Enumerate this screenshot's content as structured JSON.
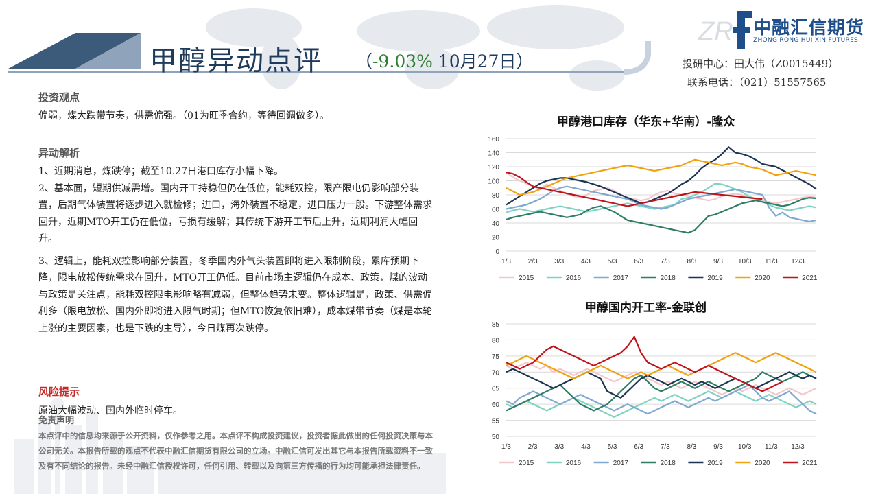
{
  "header": {
    "title": "甲醇异动点评",
    "subtitle_open": "（",
    "subtitle_pct": "-9.03%",
    "subtitle_date": " 10月27日）"
  },
  "logo": {
    "mark": "ZR",
    "name_cn": "中融汇信期货",
    "name_en": "ZHONG RONG HUI XIN FUTURES"
  },
  "contact": {
    "analyst": "投研中心：田大伟（Z0015449）",
    "phone": "联系电话：（021）51557565"
  },
  "view": {
    "heading": "投资观点",
    "text": "偏弱，煤大跌带节奏，供需偏强。（01为旺季合约，等待回调做多）。"
  },
  "analysis": {
    "heading": "异动解析",
    "p1": "1、近期消息，煤跌停；截至10.27日港口库存小幅下降。",
    "p2": "2、基本面，短期供减需增。国内开工持稳但仍在低位，能耗双控，限产限电仍影响部分装置，后期气体装置将逐步进入就检修；进口，海外装置不稳定，进口压力一般。下游整体需求回升，近期MTO开工仍在低位，亏损有缓解；其传统下游开工节后上升，近期利润大幅回升。",
    "p3": "3、逻辑上，能耗双控影响部分装置，冬季国内外气头装置即将进入限制阶段，累库预期下降，限电放松传统需求在回升，MTO开工仍低。目前市场主逻辑仍在成本、政策，煤的波动与政策是关注点，能耗双控限电影响略有减弱，但整体趋势未变。整体逻辑是，政策、供需偏利多（限电放松、国内外即将进入限气时期；但MTO恢复依旧难），成本煤带节奏（煤是本轮上涨的主要因素，也是下跌的主导），今日煤再次跌停。"
  },
  "risk": {
    "heading": "风险提示",
    "text": "原油大幅波动、国内外临时停车。"
  },
  "disclaimer": {
    "heading": "免责声明",
    "text": "本点评中的信息均来源于公开资料，仅作参考之用。本点评不构成投资建议，投资者据此做出的任何投资决策与本公司无关。本报告所载的观点不代表中融汇信期货有限公司的立场。中融汇信可发出其它与本报告所载资料不一致及有不同结论的报告。未经中融汇信授权许可，任何引用、转载以及向第三方传播的行为均可能承担法律责任。"
  },
  "colors": {
    "title": "#1f3b5c",
    "accent_green": "#2e7d32",
    "risk_red": "#c62828",
    "logo_blue": "#1f4f8b"
  },
  "chart_data": [
    {
      "type": "line",
      "title": "甲醇港口库存（华东+华南）-隆众",
      "x_ticks": [
        "1/3",
        "2/3",
        "3/3",
        "4/3",
        "5/3",
        "6/3",
        "7/3",
        "8/3",
        "9/3",
        "10/3",
        "11/3",
        "12/3"
      ],
      "ylim": [
        0,
        160
      ],
      "y_ticks": [
        0,
        20,
        40,
        60,
        80,
        100,
        120,
        140,
        160
      ],
      "grid": true,
      "legend": "bottom",
      "series": [
        {
          "name": "2015",
          "color": "#f4c7cc",
          "values": [
            112,
            105,
            100,
            96,
            92,
            88,
            95,
            90,
            86,
            82,
            78,
            76,
            80,
            86,
            88,
            90,
            86,
            80,
            76,
            74,
            72,
            74,
            80,
            84,
            86,
            82,
            80,
            78,
            76,
            74,
            72,
            74,
            78,
            80,
            82,
            80,
            76,
            74,
            72,
            70,
            68,
            70,
            72,
            74,
            76,
            78,
            76
          ]
        },
        {
          "name": "2016",
          "color": "#7fd3c3",
          "values": [
            55,
            58,
            60,
            58,
            56,
            58,
            60,
            62,
            64,
            62,
            60,
            58,
            56,
            58,
            60,
            62,
            64,
            66,
            68,
            66,
            64,
            62,
            60,
            62,
            64,
            66,
            74,
            76,
            80,
            84,
            90,
            96,
            95,
            92,
            88,
            84,
            78,
            74,
            70,
            66,
            62,
            60,
            58,
            60,
            62,
            64,
            62
          ]
        },
        {
          "name": "2017",
          "color": "#7fa9d1",
          "values": [
            60,
            62,
            64,
            66,
            70,
            74,
            80,
            86,
            90,
            92,
            90,
            88,
            86,
            84,
            82,
            80,
            78,
            76,
            74,
            70,
            66,
            64,
            62,
            60,
            62,
            66,
            70,
            74,
            76,
            78,
            80,
            82,
            84,
            86,
            88,
            86,
            84,
            82,
            80,
            62,
            50,
            55,
            48,
            46,
            44,
            42,
            44
          ]
        },
        {
          "name": "2018",
          "color": "#2e7d64",
          "values": [
            45,
            48,
            50,
            52,
            54,
            56,
            54,
            52,
            50,
            48,
            50,
            52,
            58,
            62,
            64,
            60,
            56,
            50,
            44,
            42,
            40,
            38,
            36,
            34,
            32,
            30,
            28,
            26,
            30,
            40,
            50,
            52,
            56,
            60,
            64,
            68,
            70,
            72,
            70,
            68,
            66,
            64,
            66,
            70,
            74,
            76,
            75
          ]
        },
        {
          "name": "2019",
          "color": "#1c3553",
          "values": [
            66,
            72,
            78,
            84,
            90,
            96,
            100,
            102,
            104,
            104,
            102,
            100,
            98,
            95,
            92,
            88,
            84,
            80,
            76,
            72,
            68,
            70,
            74,
            78,
            82,
            88,
            95,
            100,
            108,
            118,
            125,
            130,
            138,
            148,
            140,
            138,
            135,
            130,
            124,
            122,
            120,
            115,
            110,
            105,
            100,
            95,
            88
          ]
        },
        {
          "name": "2020",
          "color": "#f2a20c",
          "values": [
            90,
            85,
            80,
            82,
            84,
            88,
            92,
            96,
            100,
            104,
            106,
            108,
            110,
            112,
            114,
            116,
            118,
            120,
            122,
            120,
            118,
            116,
            114,
            116,
            118,
            120,
            122,
            126,
            130,
            128,
            126,
            124,
            122,
            124,
            126,
            124,
            120,
            118,
            116,
            112,
            108,
            110,
            112,
            114,
            112,
            110,
            108
          ]
        },
        {
          "name": "2021",
          "color": "#c0141c",
          "values": [
            112,
            110,
            105,
            98,
            92,
            90,
            88,
            86,
            84,
            82,
            80,
            78,
            76,
            74,
            72,
            70,
            68,
            66,
            64,
            66,
            68,
            70,
            72,
            74,
            76,
            78,
            80,
            82,
            84,
            83,
            82,
            81,
            80,
            79,
            78,
            77,
            76,
            75,
            74
          ]
        }
      ]
    },
    {
      "type": "line",
      "title": "甲醇国内开工率-金联创",
      "x_ticks": [
        "1/3",
        "2/3",
        "3/3",
        "4/3",
        "5/3",
        "6/3",
        "7/3",
        "8/3",
        "9/3",
        "10/3",
        "11/3",
        "12/3"
      ],
      "ylim": [
        50,
        85
      ],
      "y_ticks": [
        50,
        55,
        60,
        65,
        70,
        75,
        80,
        85
      ],
      "grid": true,
      "legend": "bottom",
      "series": [
        {
          "name": "2015",
          "color": "#f4c7cc",
          "values": [
            72,
            71,
            72,
            73,
            72,
            71,
            72,
            70,
            71,
            70,
            69,
            70,
            71,
            70,
            69,
            68,
            67,
            68,
            69,
            70,
            69,
            68,
            67,
            66,
            67,
            66,
            65,
            66,
            67,
            66,
            65,
            64,
            63,
            64,
            65,
            64,
            65,
            66,
            65,
            64,
            63,
            64,
            65,
            64,
            63,
            64,
            65
          ]
        },
        {
          "name": "2016",
          "color": "#7fd3c3",
          "values": [
            60,
            59,
            60,
            61,
            60,
            59,
            58,
            59,
            60,
            61,
            62,
            61,
            60,
            59,
            58,
            57,
            56,
            57,
            58,
            59,
            60,
            61,
            62,
            61,
            62,
            63,
            62,
            61,
            62,
            63,
            64,
            63,
            62,
            63,
            64,
            63,
            62,
            61,
            62,
            63,
            62,
            61,
            60,
            59,
            60,
            61,
            60
          ]
        },
        {
          "name": "2017",
          "color": "#7fa9d1",
          "values": [
            61,
            60,
            62,
            63,
            64,
            63,
            62,
            61,
            60,
            61,
            62,
            63,
            62,
            61,
            60,
            59,
            58,
            59,
            60,
            59,
            58,
            57,
            58,
            59,
            60,
            61,
            60,
            59,
            60,
            61,
            62,
            61,
            62,
            63,
            64,
            65,
            66,
            64,
            62,
            61,
            62,
            63,
            64,
            62,
            60,
            58,
            57
          ]
        },
        {
          "name": "2018",
          "color": "#2e7d64",
          "values": [
            58,
            59,
            60,
            61,
            62,
            63,
            64,
            65,
            66,
            64,
            62,
            60,
            59,
            58,
            59,
            60,
            62,
            64,
            66,
            68,
            69,
            67,
            65,
            64,
            65,
            66,
            67,
            66,
            65,
            66,
            67,
            66,
            65,
            64,
            65,
            66,
            67,
            68,
            70,
            69,
            68,
            67,
            68,
            69,
            70,
            69,
            68
          ]
        },
        {
          "name": "2019",
          "color": "#1c3553",
          "values": [
            70,
            71,
            70,
            69,
            68,
            67,
            66,
            65,
            66,
            67,
            68,
            69,
            70,
            69,
            68,
            64,
            63,
            62,
            64,
            66,
            68,
            69,
            68,
            67,
            66,
            67,
            68,
            67,
            66,
            67,
            66,
            65,
            66,
            67,
            68,
            67,
            66,
            65,
            66,
            67,
            68,
            69,
            70,
            69,
            68,
            69,
            68
          ]
        },
        {
          "name": "2020",
          "color": "#f2a20c",
          "values": [
            72,
            73,
            74,
            75,
            74,
            73,
            72,
            71,
            70,
            69,
            68,
            69,
            70,
            71,
            72,
            71,
            70,
            69,
            68,
            69,
            70,
            69,
            70,
            71,
            72,
            71,
            70,
            69,
            70,
            71,
            72,
            73,
            74,
            75,
            76,
            75,
            74,
            73,
            74,
            75,
            76,
            75,
            74,
            73,
            72,
            71,
            70
          ]
        },
        {
          "name": "2021",
          "color": "#c0141c",
          "values": [
            73,
            72,
            71,
            72,
            73,
            75,
            77,
            78,
            77,
            76,
            75,
            74,
            73,
            72,
            73,
            74,
            75,
            76,
            78,
            81,
            76,
            73,
            72,
            71,
            72,
            73,
            72,
            71,
            70,
            71,
            72,
            71,
            70,
            69,
            68,
            67,
            66,
            65,
            64,
            65,
            66,
            67
          ]
        }
      ]
    }
  ]
}
